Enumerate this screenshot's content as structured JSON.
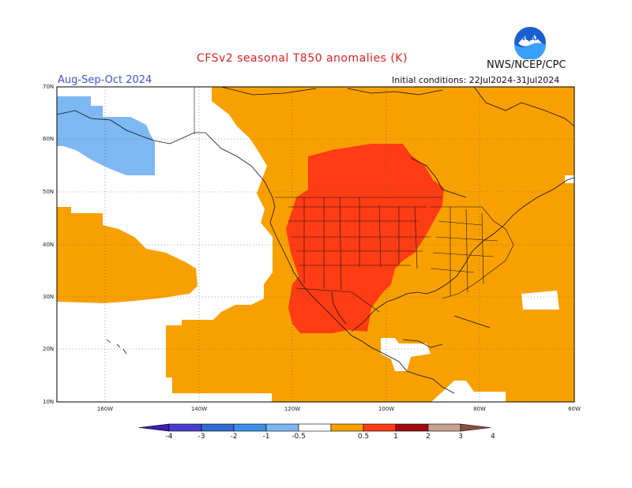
{
  "title": "CFSv2 seasonal T850 anomalies (K)",
  "agency": "NWS/NCEP/CPC",
  "season": "Aug-Sep-Oct 2024",
  "initial_conditions": "Initial conditions: 22Jul2024-31Jul2024",
  "logo": {
    "icon": "noaa-logo-icon",
    "text": "NOAA"
  },
  "lat_labels": [
    "70N",
    "60N",
    "50N",
    "40N",
    "30N",
    "20N",
    "10N"
  ],
  "lon_labels": [
    "160W",
    "140W",
    "120W",
    "100W",
    "80W",
    "60W"
  ],
  "colorbar": {
    "labels": [
      "-4",
      "-3",
      "-2",
      "-1",
      "-0.5",
      "0.5",
      "1",
      "2",
      "3",
      "4"
    ],
    "colors": [
      "#3a1fb0",
      "#4a3ed0",
      "#2f6ad0",
      "#3c8fe6",
      "#7db8f2",
      "#ffffff",
      "#f8a000",
      "#ff3c14",
      "#a00c0c",
      "#c8a090",
      "#8a5040"
    ]
  },
  "colors": {
    "warm_05_1": "#f8a000",
    "warm_1_2": "#ff3c14",
    "cool_05_1": "#7db8f2",
    "neutral": "#ffffff"
  }
}
